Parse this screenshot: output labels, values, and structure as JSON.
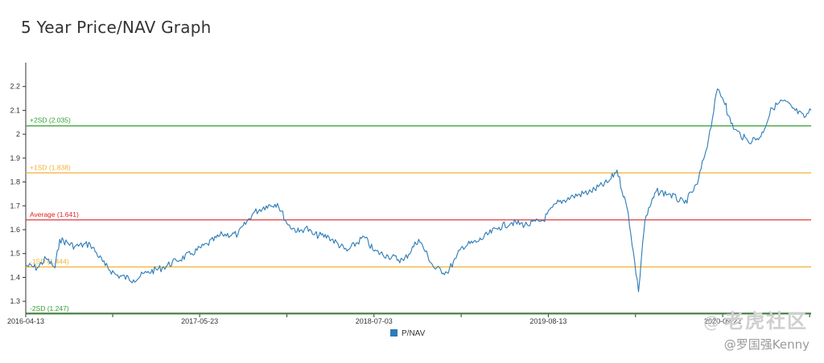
{
  "chart_data": {
    "type": "line",
    "title": "5 Year Price/NAV Graph",
    "xlabel": "",
    "ylabel": "",
    "x_range": [
      "2016-04-13",
      "2021-04-16"
    ],
    "x_tick_labels": [
      "2016-04-13",
      "2017-05-23",
      "2018-07-03",
      "2019-08-13",
      "2020-09-22"
    ],
    "ylim": [
      1.25,
      2.3
    ],
    "y_ticks": [
      1.3,
      1.4,
      1.5,
      1.6,
      1.7,
      1.8,
      1.9,
      2,
      2.1,
      2.2
    ],
    "y_tick_labels": [
      "1.3",
      "1.4",
      "1.5",
      "1.6",
      "1.7",
      "1.8",
      "1.9",
      "2",
      "2.1",
      "2.2"
    ],
    "grid": false,
    "legend": {
      "position": "bottom-center",
      "entries": [
        "P/NAV"
      ]
    },
    "series": [
      {
        "name": "P/NAV",
        "color": "#2c7bb6",
        "x": [
          "2016-04-13",
          "2016-05-10",
          "2016-05-30",
          "2016-06-20",
          "2016-07-01",
          "2016-08-05",
          "2016-09-10",
          "2016-10-15",
          "2016-11-10",
          "2016-12-20",
          "2017-01-20",
          "2017-02-25",
          "2017-03-30",
          "2017-05-05",
          "2017-06-10",
          "2017-07-15",
          "2017-08-20",
          "2017-09-25",
          "2017-10-25",
          "2017-11-20",
          "2017-12-15",
          "2018-01-10",
          "2018-01-25",
          "2018-02-10",
          "2018-03-20",
          "2018-05-01",
          "2018-06-10",
          "2018-07-03",
          "2018-08-05",
          "2018-09-10",
          "2018-10-15",
          "2018-11-20",
          "2018-12-20",
          "2019-01-10",
          "2019-01-25",
          "2019-03-01",
          "2019-04-20",
          "2019-05-20",
          "2019-06-25",
          "2019-08-01",
          "2019-09-01",
          "2019-10-10",
          "2019-11-20",
          "2019-12-31",
          "2020-01-20",
          "2020-02-15",
          "2020-03-10",
          "2020-03-20",
          "2020-03-25",
          "2020-04-20",
          "2020-05-20",
          "2020-06-25",
          "2020-07-25",
          "2020-08-20",
          "2020-09-10",
          "2020-09-30",
          "2020-10-03",
          "2020-10-20",
          "2020-11-20",
          "2020-12-20",
          "2021-01-15",
          "2021-02-10",
          "2021-03-10",
          "2021-03-31",
          "2021-04-16"
        ],
        "values": [
          1.45,
          1.44,
          1.48,
          1.44,
          1.56,
          1.53,
          1.54,
          1.45,
          1.41,
          1.39,
          1.42,
          1.44,
          1.47,
          1.5,
          1.54,
          1.58,
          1.58,
          1.67,
          1.7,
          1.71,
          1.62,
          1.59,
          1.61,
          1.58,
          1.57,
          1.51,
          1.57,
          1.51,
          1.49,
          1.47,
          1.56,
          1.44,
          1.42,
          1.48,
          1.53,
          1.55,
          1.61,
          1.63,
          1.62,
          1.64,
          1.71,
          1.74,
          1.76,
          1.8,
          1.85,
          1.67,
          1.34,
          1.55,
          1.64,
          1.76,
          1.75,
          1.71,
          1.79,
          1.98,
          2.19,
          2.13,
          2.08,
          2.02,
          1.97,
          1.99,
          2.11,
          2.14,
          2.1,
          2.07,
          2.1
        ]
      }
    ],
    "reference_lines": [
      {
        "label": "+2SD (2.035)",
        "value": 2.035,
        "color": "#2e9e2e"
      },
      {
        "label": "+1SD (1.838)",
        "value": 1.838,
        "color": "#f2b134"
      },
      {
        "label": "Average (1.641)",
        "value": 1.641,
        "color": "#e02020"
      },
      {
        "label": "-1SD (1.444)",
        "value": 1.444,
        "color": "#f2b134"
      },
      {
        "label": "-2SD (1.247)",
        "value": 1.247,
        "color": "#2e9e2e"
      }
    ]
  },
  "watermark": {
    "at_symbol": "@",
    "brand": "老虎社区",
    "author": "@罗国强Kenny"
  }
}
